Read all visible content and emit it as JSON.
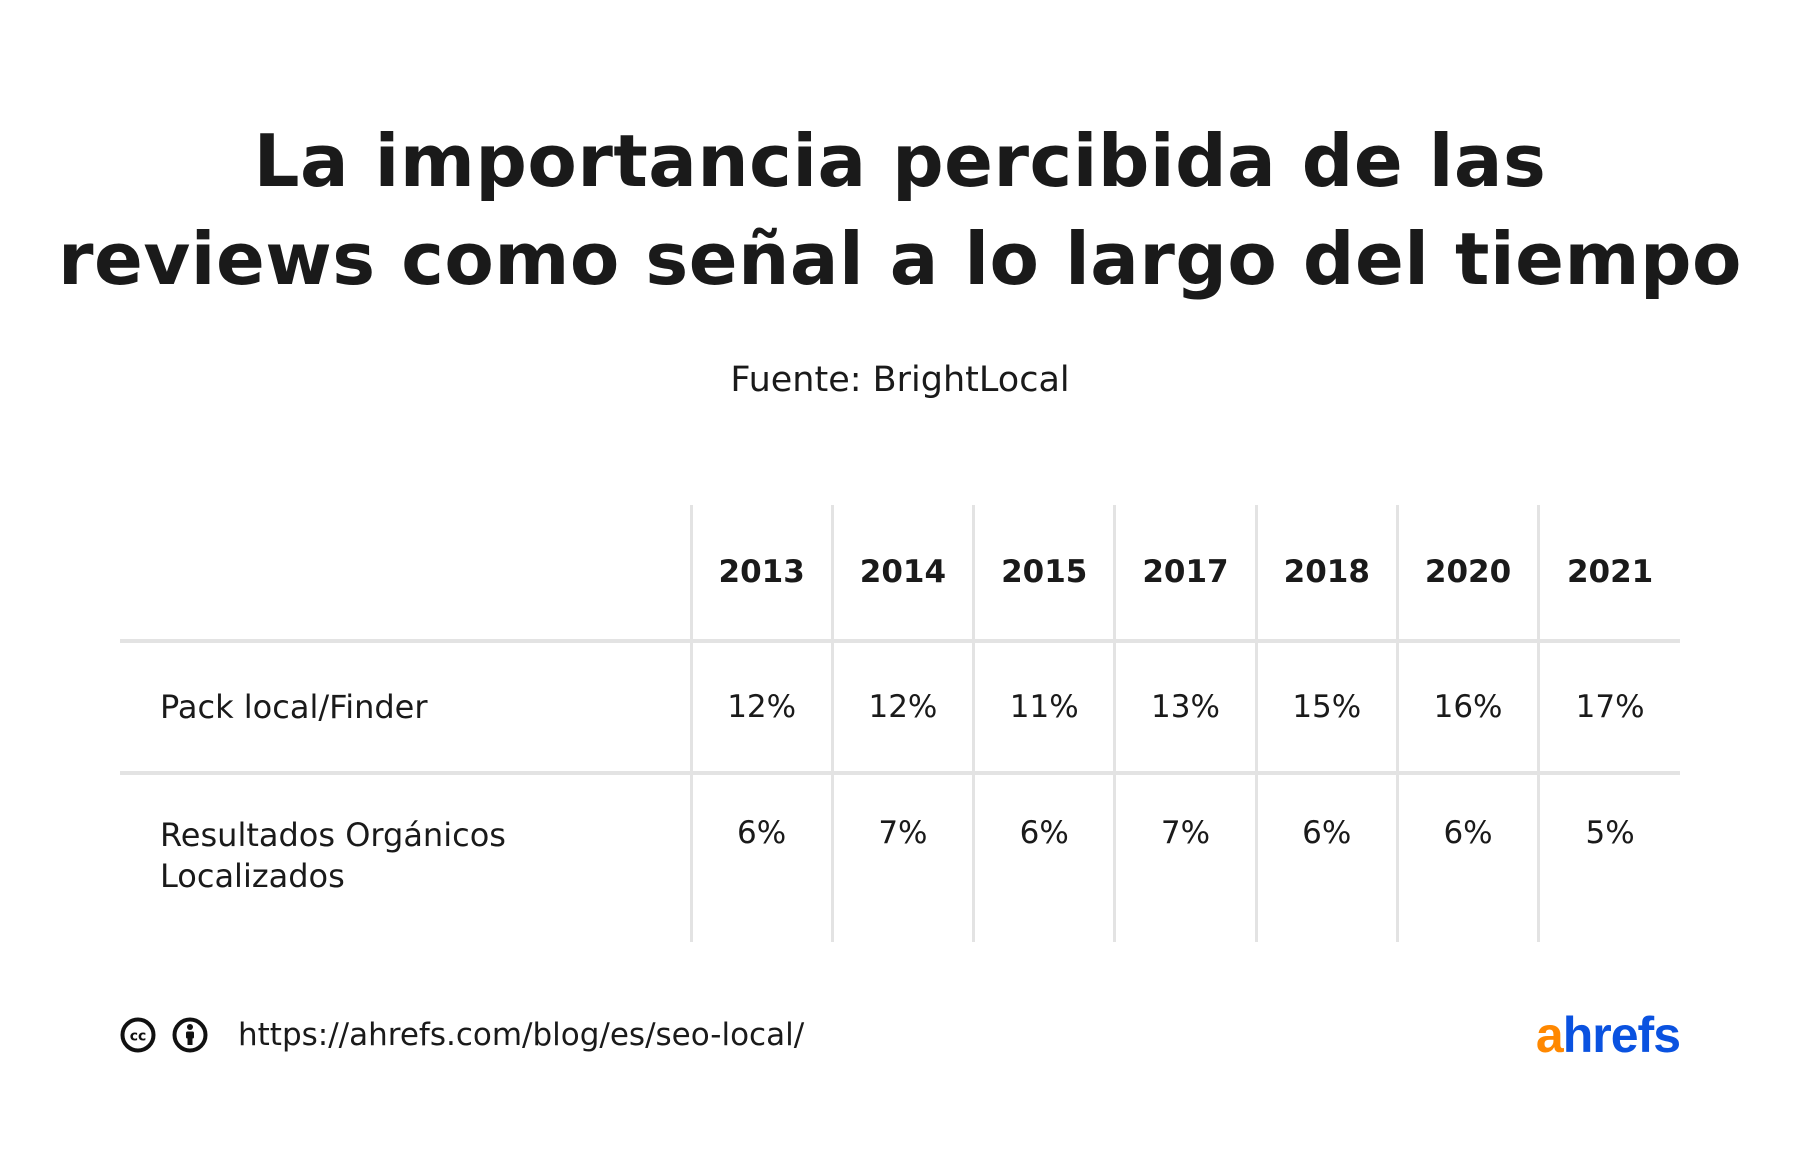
{
  "title_line1": "La importancia percibida de las",
  "title_line2": "reviews como señal a lo largo del tiempo",
  "subtitle": "Fuente: BrightLocal",
  "chart_data": {
    "type": "table",
    "columns": [
      "2013",
      "2014",
      "2015",
      "2017",
      "2018",
      "2020",
      "2021"
    ],
    "rows": [
      {
        "label": "Pack local/Finder",
        "values": [
          "12%",
          "12%",
          "11%",
          "13%",
          "15%",
          "16%",
          "17%"
        ]
      },
      {
        "label_line1": "Resultados Orgánicos",
        "label_line2": "Localizados",
        "values": [
          "6%",
          "7%",
          "6%",
          "7%",
          "6%",
          "6%",
          "5%"
        ]
      }
    ]
  },
  "footer": {
    "icons": [
      "creative-commons-icon",
      "attribution-icon"
    ],
    "url": "https://ahrefs.com/blog/es/seo-local/",
    "logo_a": "a",
    "logo_rest": "hrefs",
    "colors": {
      "logo_orange": "#ff8800",
      "logo_blue": "#0a52e0",
      "grid": "#e3e3e3"
    }
  }
}
